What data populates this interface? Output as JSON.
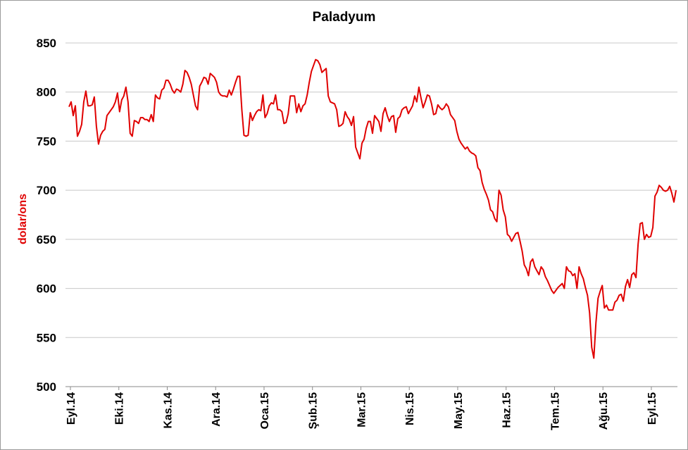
{
  "chart_data": {
    "type": "line",
    "title": "Paladyum",
    "xlabel": "",
    "ylabel": "dolar/ons",
    "ylim": [
      500,
      850
    ],
    "y_ticks": [
      500,
      550,
      600,
      650,
      700,
      750,
      800,
      850
    ],
    "x_tick_labels": [
      "Eyl.14",
      "Eki.14",
      "Kas.14",
      "Ara.14",
      "Oca.15",
      "Şub.15",
      "Mar.15",
      "Nis.15",
      "May.15",
      "Haz.15",
      "Tem.15",
      "Ağu.15",
      "Eyl.15"
    ],
    "grid": true,
    "line_color": "#e00000",
    "series": [
      {
        "name": "",
        "values": [
          785,
          790,
          776,
          786,
          755,
          760,
          767,
          790,
          801,
          786,
          786,
          787,
          795,
          765,
          747,
          756,
          760,
          762,
          776,
          779,
          782,
          785,
          790,
          799,
          780,
          792,
          796,
          805,
          790,
          758,
          755,
          771,
          770,
          768,
          774,
          774,
          772,
          772,
          770,
          777,
          770,
          797,
          794,
          793,
          802,
          804,
          812,
          812,
          808,
          802,
          799,
          803,
          802,
          800,
          808,
          822,
          820,
          815,
          808,
          797,
          786,
          782,
          806,
          810,
          815,
          814,
          808,
          819,
          817,
          815,
          810,
          800,
          797,
          796,
          796,
          795,
          802,
          797,
          803,
          810,
          816,
          816,
          782,
          756,
          755,
          756,
          779,
          771,
          776,
          780,
          782,
          781,
          797,
          774,
          778,
          786,
          789,
          788,
          797,
          782,
          782,
          780,
          768,
          769,
          778,
          796,
          796,
          796,
          779,
          788,
          780,
          786,
          788,
          797,
          810,
          821,
          827,
          833,
          832,
          828,
          820,
          822,
          824,
          796,
          790,
          789,
          788,
          782,
          765,
          766,
          768,
          780,
          775,
          772,
          766,
          775,
          744,
          738,
          732,
          748,
          752,
          763,
          770,
          770,
          758,
          776,
          773,
          770,
          760,
          778,
          784,
          776,
          770,
          775,
          776,
          759,
          773,
          775,
          782,
          784,
          785,
          778,
          782,
          786,
          796,
          790,
          805,
          794,
          784,
          790,
          797,
          796,
          788,
          777,
          778,
          787,
          784,
          782,
          784,
          788,
          785,
          777,
          774,
          771,
          760,
          752,
          748,
          745,
          742,
          744,
          740,
          738,
          737,
          735,
          723,
          720,
          708,
          701,
          696,
          690,
          680,
          678,
          671,
          668,
          700,
          695,
          680,
          673,
          655,
          653,
          648,
          652,
          656,
          657,
          648,
          638,
          624,
          620,
          613,
          627,
          630,
          622,
          618,
          614,
          622,
          619,
          612,
          608,
          603,
          598,
          595,
          598,
          601,
          603,
          605,
          600,
          622,
          618,
          617,
          613,
          615,
          600,
          622,
          615,
          610,
          601,
          593,
          575,
          540,
          529,
          565,
          590,
          597,
          603,
          580,
          583,
          578,
          578,
          578,
          586,
          588,
          593,
          594,
          587,
          602,
          609,
          601,
          614,
          616,
          611,
          645,
          666,
          667,
          650,
          655,
          652,
          653,
          662,
          694,
          698,
          705,
          703,
          700,
          699,
          700,
          704,
          697,
          688,
          700
        ]
      }
    ]
  }
}
